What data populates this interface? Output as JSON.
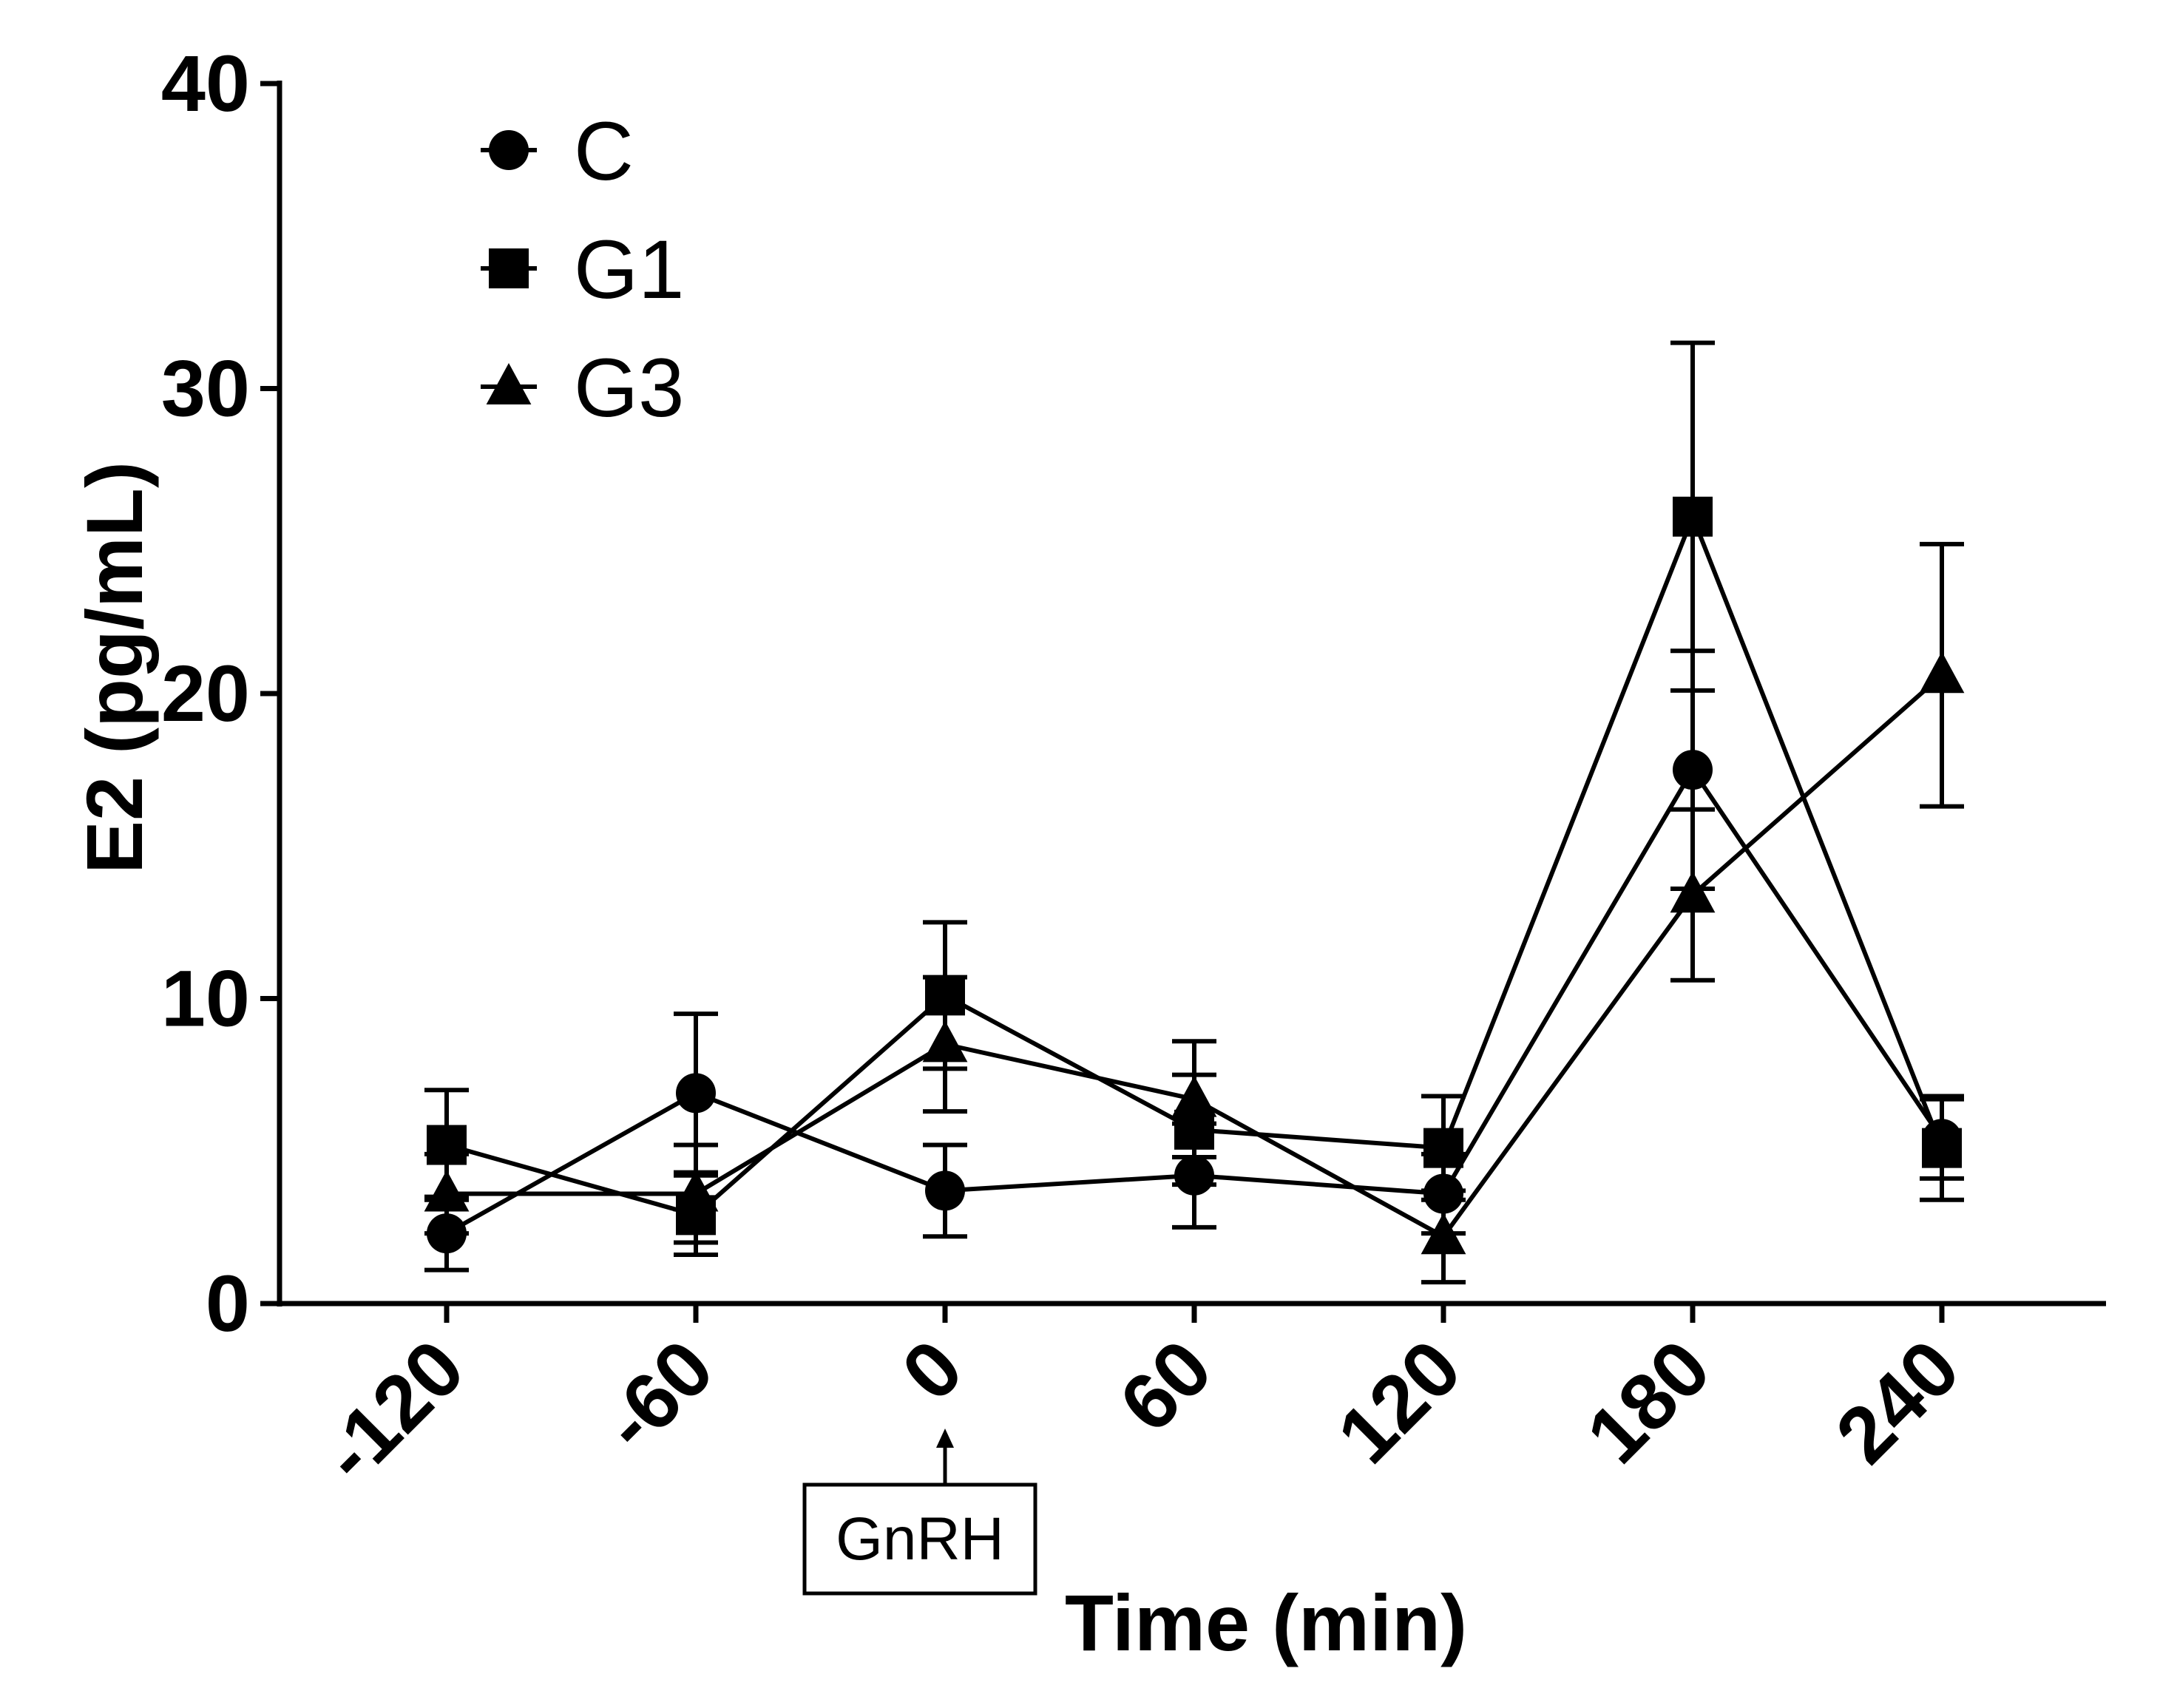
{
  "chart_data": {
    "type": "line",
    "title": "",
    "xlabel": "Time (min)",
    "ylabel": "E2 (pg/mL)",
    "categories": [
      "-120",
      "-60",
      "0",
      "60",
      "120",
      "180",
      "240"
    ],
    "ylim": [
      0,
      40
    ],
    "yticks": [
      "0",
      "10",
      "20",
      "30",
      "40"
    ],
    "legend_position": "top-left",
    "series": [
      {
        "name": "C",
        "marker": "circle",
        "values": [
          2.3,
          6.9,
          3.7,
          4.2,
          3.6,
          17.5,
          5.4
        ],
        "err_upper": [
          1.2,
          2.6,
          1.5,
          1.7,
          1.3,
          3.9,
          1.3
        ],
        "err_lower": [
          1.2,
          2.6,
          1.5,
          1.7,
          1.3,
          3.9,
          1.3
        ]
      },
      {
        "name": "G1",
        "marker": "square",
        "values": [
          5.2,
          2.9,
          10.1,
          5.7,
          5.1,
          25.8,
          5.1
        ],
        "err_upper": [
          1.8,
          1.3,
          2.4,
          1.8,
          1.7,
          5.7,
          1.7
        ],
        "err_lower": [
          1.8,
          1.3,
          2.4,
          1.8,
          1.7,
          5.7,
          1.7
        ]
      },
      {
        "name": "G3",
        "marker": "triangle",
        "values": [
          3.6,
          3.6,
          8.5,
          6.7,
          2.2,
          13.4,
          20.6
        ],
        "err_upper": [
          1.3,
          1.6,
          2.2,
          1.9,
          1.5,
          2.8,
          4.3
        ],
        "err_lower": [
          1.3,
          1.6,
          2.2,
          1.9,
          1.5,
          2.8,
          4.3
        ]
      }
    ],
    "annotation": {
      "text": "GnRH",
      "at_category": "0"
    }
  }
}
